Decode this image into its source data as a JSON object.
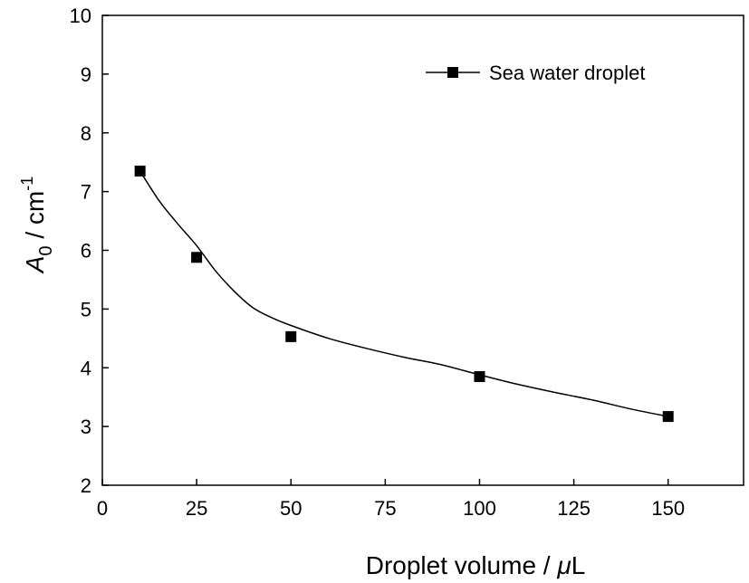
{
  "chart_data": {
    "type": "scatter",
    "xlabel": "Droplet volume / μL",
    "ylabel": "A0 / cm-1",
    "ylabel_parts": {
      "symbol": "A",
      "subscript": "0",
      "unit": " / cm",
      "superscript": "-1"
    },
    "xlabel_parts": {
      "text": "Droplet volume / ",
      "mu": "μ",
      "unit": "L"
    },
    "xlim": [
      0,
      170
    ],
    "ylim": [
      2,
      10
    ],
    "x_ticks": [
      0,
      25,
      50,
      75,
      100,
      125,
      150
    ],
    "y_ticks": [
      2,
      3,
      4,
      5,
      6,
      7,
      8,
      9,
      10
    ],
    "grid": false,
    "legend_position": "top-right",
    "series": [
      {
        "name": "Sea water droplet",
        "marker": "square",
        "color": "#000000",
        "x": [
          10,
          25,
          50,
          100,
          150
        ],
        "y": [
          7.35,
          5.88,
          4.53,
          3.85,
          3.17
        ]
      }
    ],
    "fit_curve": {
      "x": [
        10,
        15,
        20,
        25,
        30,
        35,
        40,
        45,
        50,
        60,
        70,
        80,
        90,
        100,
        110,
        120,
        130,
        140,
        150
      ],
      "y": [
        7.35,
        6.85,
        6.45,
        6.08,
        5.65,
        5.3,
        5.02,
        4.85,
        4.72,
        4.5,
        4.33,
        4.18,
        4.05,
        3.88,
        3.72,
        3.58,
        3.45,
        3.3,
        3.17
      ]
    }
  }
}
